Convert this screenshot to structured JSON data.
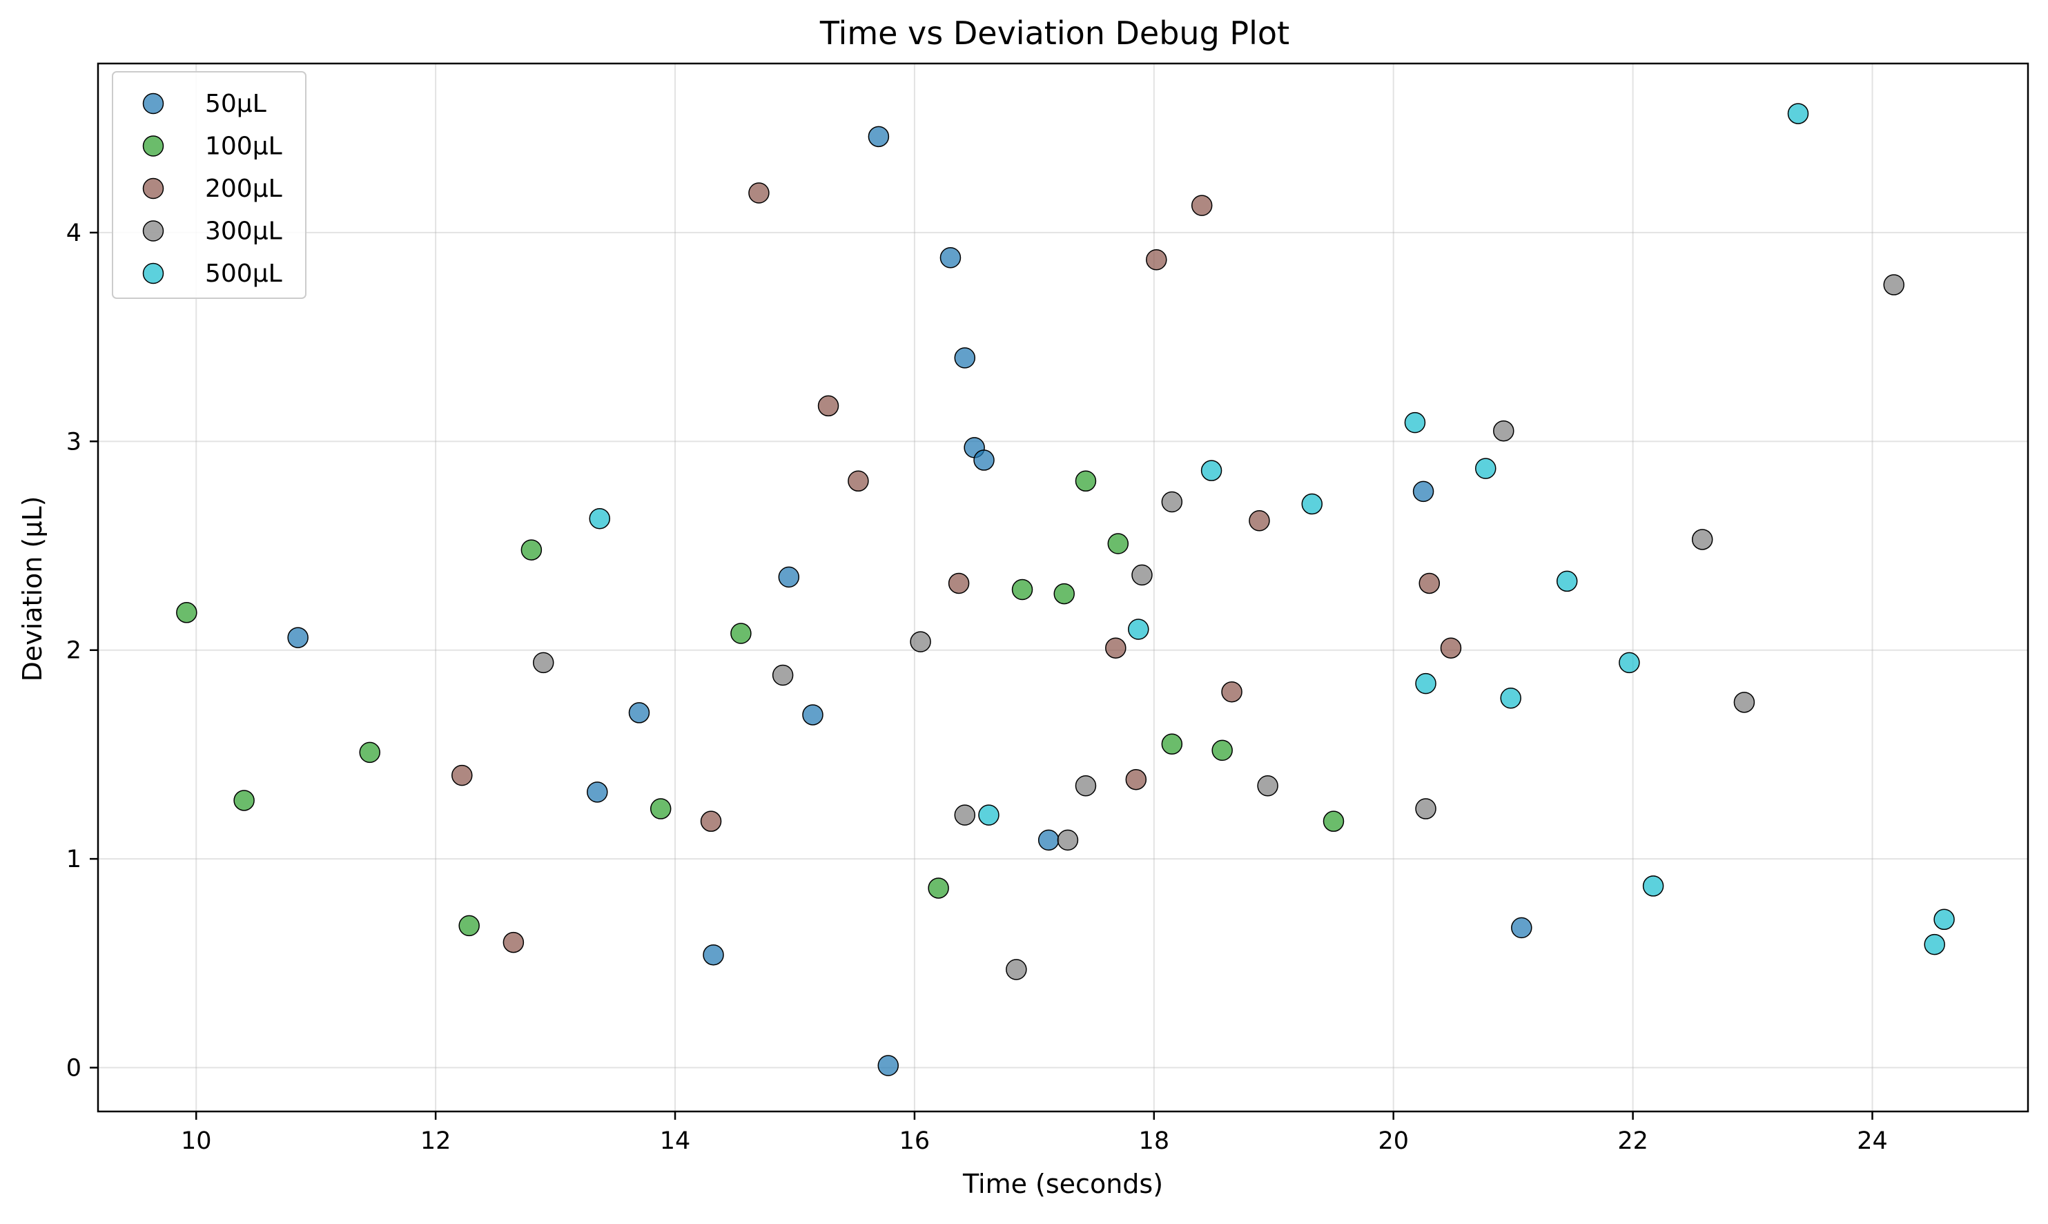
{
  "chart_data": {
    "type": "scatter",
    "title": "Time vs Deviation Debug Plot",
    "xlabel": "Time (seconds)",
    "ylabel": "Deviation (µL)",
    "xlim": [
      9.18,
      25.3
    ],
    "ylim": [
      -0.21,
      4.81
    ],
    "xticks": [
      10,
      12,
      14,
      16,
      18,
      20,
      22,
      24
    ],
    "yticks": [
      0,
      1,
      2,
      3,
      4
    ],
    "grid": true,
    "legend_position": "top-left",
    "series": [
      {
        "name": "50µL",
        "color": "#1f77b4",
        "points": [
          [
            15.7,
            4.46
          ],
          [
            16.3,
            3.88
          ],
          [
            16.42,
            3.4
          ],
          [
            16.5,
            2.97
          ],
          [
            16.58,
            2.91
          ],
          [
            14.95,
            2.35
          ],
          [
            10.85,
            2.06
          ],
          [
            13.7,
            1.7
          ],
          [
            15.15,
            1.69
          ],
          [
            13.35,
            1.32
          ],
          [
            17.12,
            1.09
          ],
          [
            14.32,
            0.54
          ],
          [
            15.78,
            0.01
          ],
          [
            20.25,
            2.76
          ],
          [
            21.07,
            0.67
          ]
        ]
      },
      {
        "name": "100µL",
        "color": "#2ca02c",
        "points": [
          [
            9.92,
            2.18
          ],
          [
            12.8,
            2.48
          ],
          [
            14.55,
            2.08
          ],
          [
            11.45,
            1.51
          ],
          [
            10.4,
            1.28
          ],
          [
            13.88,
            1.24
          ],
          [
            12.28,
            0.68
          ],
          [
            16.2,
            0.86
          ],
          [
            16.9,
            2.29
          ],
          [
            17.25,
            2.27
          ],
          [
            17.43,
            2.81
          ],
          [
            17.7,
            2.51
          ],
          [
            18.15,
            1.55
          ],
          [
            18.57,
            1.52
          ],
          [
            19.5,
            1.18
          ]
        ]
      },
      {
        "name": "200µL",
        "color": "#8c564b",
        "points": [
          [
            14.7,
            4.19
          ],
          [
            15.28,
            3.17
          ],
          [
            15.53,
            2.81
          ],
          [
            12.22,
            1.4
          ],
          [
            12.65,
            0.6
          ],
          [
            14.3,
            1.18
          ],
          [
            16.37,
            2.32
          ],
          [
            17.68,
            2.01
          ],
          [
            17.85,
            1.38
          ],
          [
            18.02,
            3.87
          ],
          [
            18.4,
            4.13
          ],
          [
            18.65,
            1.8
          ],
          [
            18.88,
            2.62
          ],
          [
            20.3,
            2.32
          ],
          [
            20.48,
            2.01
          ]
        ]
      },
      {
        "name": "300µL",
        "color": "#7f7f7f",
        "points": [
          [
            12.9,
            1.94
          ],
          [
            14.9,
            1.88
          ],
          [
            16.05,
            2.04
          ],
          [
            16.42,
            1.21
          ],
          [
            16.85,
            0.47
          ],
          [
            17.28,
            1.09
          ],
          [
            17.43,
            1.35
          ],
          [
            17.9,
            2.36
          ],
          [
            18.15,
            2.71
          ],
          [
            18.95,
            1.35
          ],
          [
            20.27,
            1.24
          ],
          [
            20.92,
            3.05
          ],
          [
            22.58,
            2.53
          ],
          [
            22.93,
            1.75
          ],
          [
            24.18,
            3.75
          ]
        ]
      },
      {
        "name": "500µL",
        "color": "#17becf",
        "points": [
          [
            13.37,
            2.63
          ],
          [
            16.62,
            1.21
          ],
          [
            17.87,
            2.1
          ],
          [
            18.48,
            2.86
          ],
          [
            19.32,
            2.7
          ],
          [
            20.18,
            3.09
          ],
          [
            20.27,
            1.84
          ],
          [
            20.77,
            2.87
          ],
          [
            20.98,
            1.77
          ],
          [
            21.45,
            2.33
          ],
          [
            21.97,
            1.94
          ],
          [
            22.17,
            0.87
          ],
          [
            23.38,
            4.57
          ],
          [
            24.52,
            0.59
          ],
          [
            24.6,
            0.71
          ]
        ]
      }
    ]
  }
}
